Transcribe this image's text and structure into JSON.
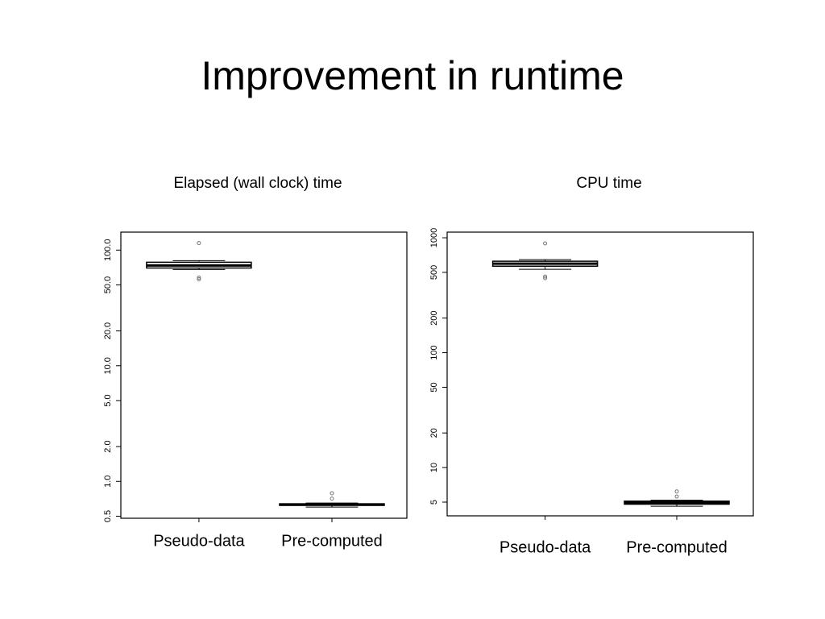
{
  "title": "Improvement in runtime",
  "chart_data": [
    {
      "type": "box",
      "title": "Elapsed (wall clock) time",
      "log_scale": true,
      "categories": [
        "Pseudo-data",
        "Pre-computed"
      ],
      "boxes": [
        {
          "min": 68,
          "q1": 70,
          "median": 73.6,
          "q3": 78.5,
          "max": 81,
          "outliers": [
            115,
            57.9,
            56
          ]
        },
        {
          "min": 0.6,
          "q1": 0.62,
          "median": 0.63,
          "q3": 0.64,
          "max": 0.65,
          "outliers": [
            0.79,
            0.71
          ]
        }
      ],
      "ylim": [
        0.48,
        143
      ],
      "yticks": [
        0.5,
        {
          "value": 1,
          "label": "1.0"
        },
        {
          "value": 2,
          "label": "2.0"
        },
        {
          "value": 5,
          "label": "5.0"
        },
        {
          "value": 10,
          "label": "10.0"
        },
        {
          "value": 20,
          "label": "20.0"
        },
        {
          "value": 50,
          "label": "50.0"
        },
        {
          "value": 100,
          "label": "100.0"
        }
      ]
    },
    {
      "type": "box",
      "title": "CPU time",
      "log_scale": true,
      "categories": [
        "Pseudo-data",
        "Pre-computed"
      ],
      "boxes": [
        {
          "min": 532,
          "q1": 566,
          "median": 595,
          "q3": 625,
          "max": 645,
          "outliers": [
            893,
            460,
            445
          ]
        },
        {
          "min": 4.6,
          "q1": 4.8,
          "median": 4.95,
          "q3": 5.1,
          "max": 5.2,
          "outliers": [
            6.2,
            5.6
          ]
        }
      ],
      "ylim": [
        3.8,
        1120
      ],
      "yticks": [
        5,
        10,
        20,
        50,
        100,
        200,
        500,
        1000
      ]
    }
  ]
}
